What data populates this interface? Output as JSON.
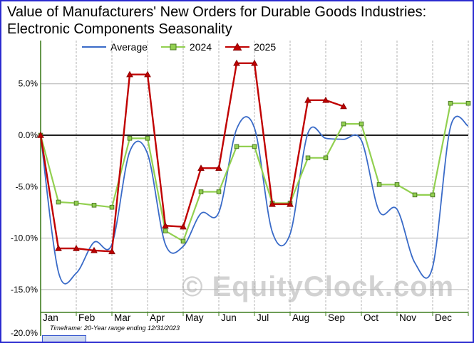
{
  "title": "Value of Manufacturers' New Orders for Durable Goods Industries: Electronic Components Seasonality",
  "watermark": "© EquityClock.com",
  "footnote": "Timeframe: 20-Year range ending 12/31/2023",
  "colors": {
    "average_line": "#3a6bc8",
    "series_2024": "#92d050",
    "series_2025": "#c00000",
    "axis": "#3f7d1f",
    "gridline": "#b3b3b3",
    "zero_line": "#000000",
    "border": "#2b2bd0",
    "watermark": "#d2d2d2"
  },
  "chart_data": {
    "type": "line",
    "title": "Value of Manufacturers' New Orders for Durable Goods Industries: Electronic Components Seasonality",
    "x_unit": "semi-monthly points; x = index * 0.5 months, Jan 1 = 0",
    "months": [
      "Jan",
      "Feb",
      "Mar",
      "Apr",
      "May",
      "Jun",
      "Jul",
      "Aug",
      "Sep",
      "Oct",
      "Nov",
      "Dec"
    ],
    "y_ticks": [
      {
        "value": 5,
        "label": "5.0%"
      },
      {
        "value": 0,
        "label": "0.0%"
      },
      {
        "value": -5,
        "label": "-5.0%"
      },
      {
        "value": -10,
        "label": "-10.0%"
      },
      {
        "value": -15,
        "label": "-15.0%"
      },
      {
        "value": -20,
        "label": "-20.0%"
      }
    ],
    "ylim": [
      -20,
      7.5
    ],
    "grid": true,
    "legend_position": "top",
    "series": [
      {
        "name": "Average",
        "color": "#3a6bc8",
        "marker": "none",
        "smooth": true,
        "width": 1.8,
        "values": [
          0.0,
          -13.3,
          -13.4,
          -10.4,
          -10.6,
          -1.6,
          -1.8,
          -10.6,
          -10.8,
          -7.6,
          -7.5,
          0.6,
          0.7,
          -9.4,
          -9.6,
          0.2,
          -0.3,
          -0.4,
          -0.5,
          -7.4,
          -7.2,
          -12.4,
          -12.8,
          0.8,
          0.9
        ]
      },
      {
        "name": "2024",
        "color": "#92d050",
        "edge": "#4e7a27",
        "marker": "square",
        "smooth": false,
        "width": 2.2,
        "values": [
          0.0,
          -6.5,
          -6.6,
          -6.8,
          -7.0,
          -0.3,
          -0.3,
          -9.3,
          -10.3,
          -5.5,
          -5.5,
          -1.1,
          -1.1,
          -6.6,
          -6.6,
          -2.2,
          -2.2,
          1.1,
          1.1,
          -4.8,
          -4.8,
          -5.8,
          -5.8,
          3.1,
          3.1
        ]
      },
      {
        "name": "2025",
        "color": "#c00000",
        "edge": "#8b0000",
        "marker": "triangle",
        "smooth": false,
        "width": 2.4,
        "values": [
          0.0,
          -11.0,
          -11.0,
          -11.2,
          -11.3,
          5.9,
          5.9,
          -8.8,
          -8.9,
          -3.2,
          -3.2,
          7.0,
          7.0,
          -6.7,
          -6.7,
          3.4,
          3.4,
          2.8
        ]
      }
    ]
  }
}
